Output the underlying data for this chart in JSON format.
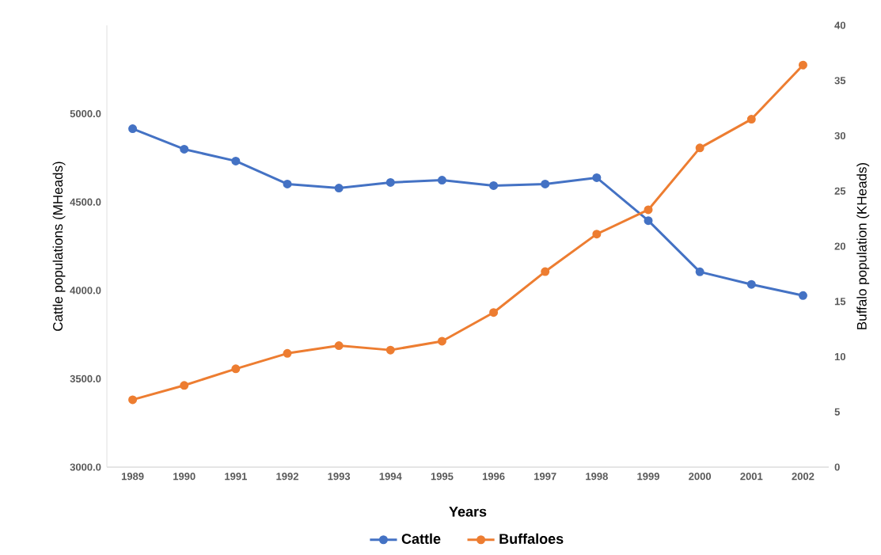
{
  "chart_data": {
    "type": "line",
    "xlabel": "Years",
    "ylabel": "Cattle populations  (MHeads)",
    "y2label": "Buffalo population (KHeads)",
    "categories": [
      "1989",
      "1990",
      "1991",
      "1992",
      "1993",
      "1994",
      "1995",
      "1996",
      "1997",
      "1998",
      "1999",
      "2000",
      "2001",
      "2002"
    ],
    "series": [
      {
        "name": "Cattle",
        "color": "#4472c4",
        "values": [
          4915,
          4799,
          4732,
          4602,
          4579,
          4611,
          4624,
          4593,
          4602,
          4638,
          4395,
          4105,
          4034,
          3971
        ]
      },
      {
        "name": "Buffaloes",
        "color": "#ed7d31",
        "axis": "y2",
        "values": [
          6.1,
          7.4,
          8.9,
          10.3,
          11.0,
          10.6,
          11.4,
          14.0,
          17.7,
          21.1,
          23.3,
          28.9,
          31.5,
          36.4
        ]
      }
    ],
    "ylim": [
      3000,
      5500
    ],
    "yticks": [
      {
        "value": 3000,
        "label": "3000.0"
      },
      {
        "value": 3500,
        "label": "3500.0"
      },
      {
        "value": 4000,
        "label": "4000.0"
      },
      {
        "value": 4500,
        "label": "4500.0"
      },
      {
        "value": 5000,
        "label": "5000.0"
      }
    ],
    "y2lim": [
      0,
      40
    ],
    "y2ticks": [
      0,
      5,
      10,
      15,
      20,
      25,
      30,
      35,
      40
    ],
    "grid": false,
    "legend": "bottom",
    "marker": "circle",
    "line_style": "solid"
  }
}
